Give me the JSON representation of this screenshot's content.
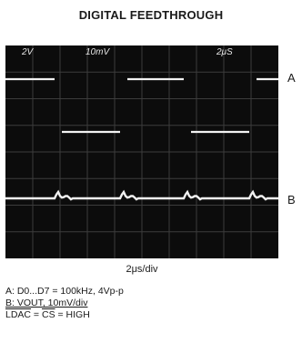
{
  "title": "DIGITAL FEEDTHROUGH",
  "scope": {
    "ch1_scale": "2V",
    "ch2_scale": "10mV",
    "time_scale": "2μS",
    "trace_color": "#f2f2f2",
    "grid_color": "#3c3c3c"
  },
  "channel_labels": {
    "a": "A",
    "b": "B"
  },
  "timebase": "2μs/div",
  "notes": {
    "line_a": "A: D0...D7 = 100kHz, 4Vp-p",
    "line_b": "B: VOUT, 10mV/div",
    "line_c_ldac": "LDAC",
    "line_c_eq": " = ",
    "line_c_cs": "CS",
    "line_c_tail": " = HIGH"
  }
}
